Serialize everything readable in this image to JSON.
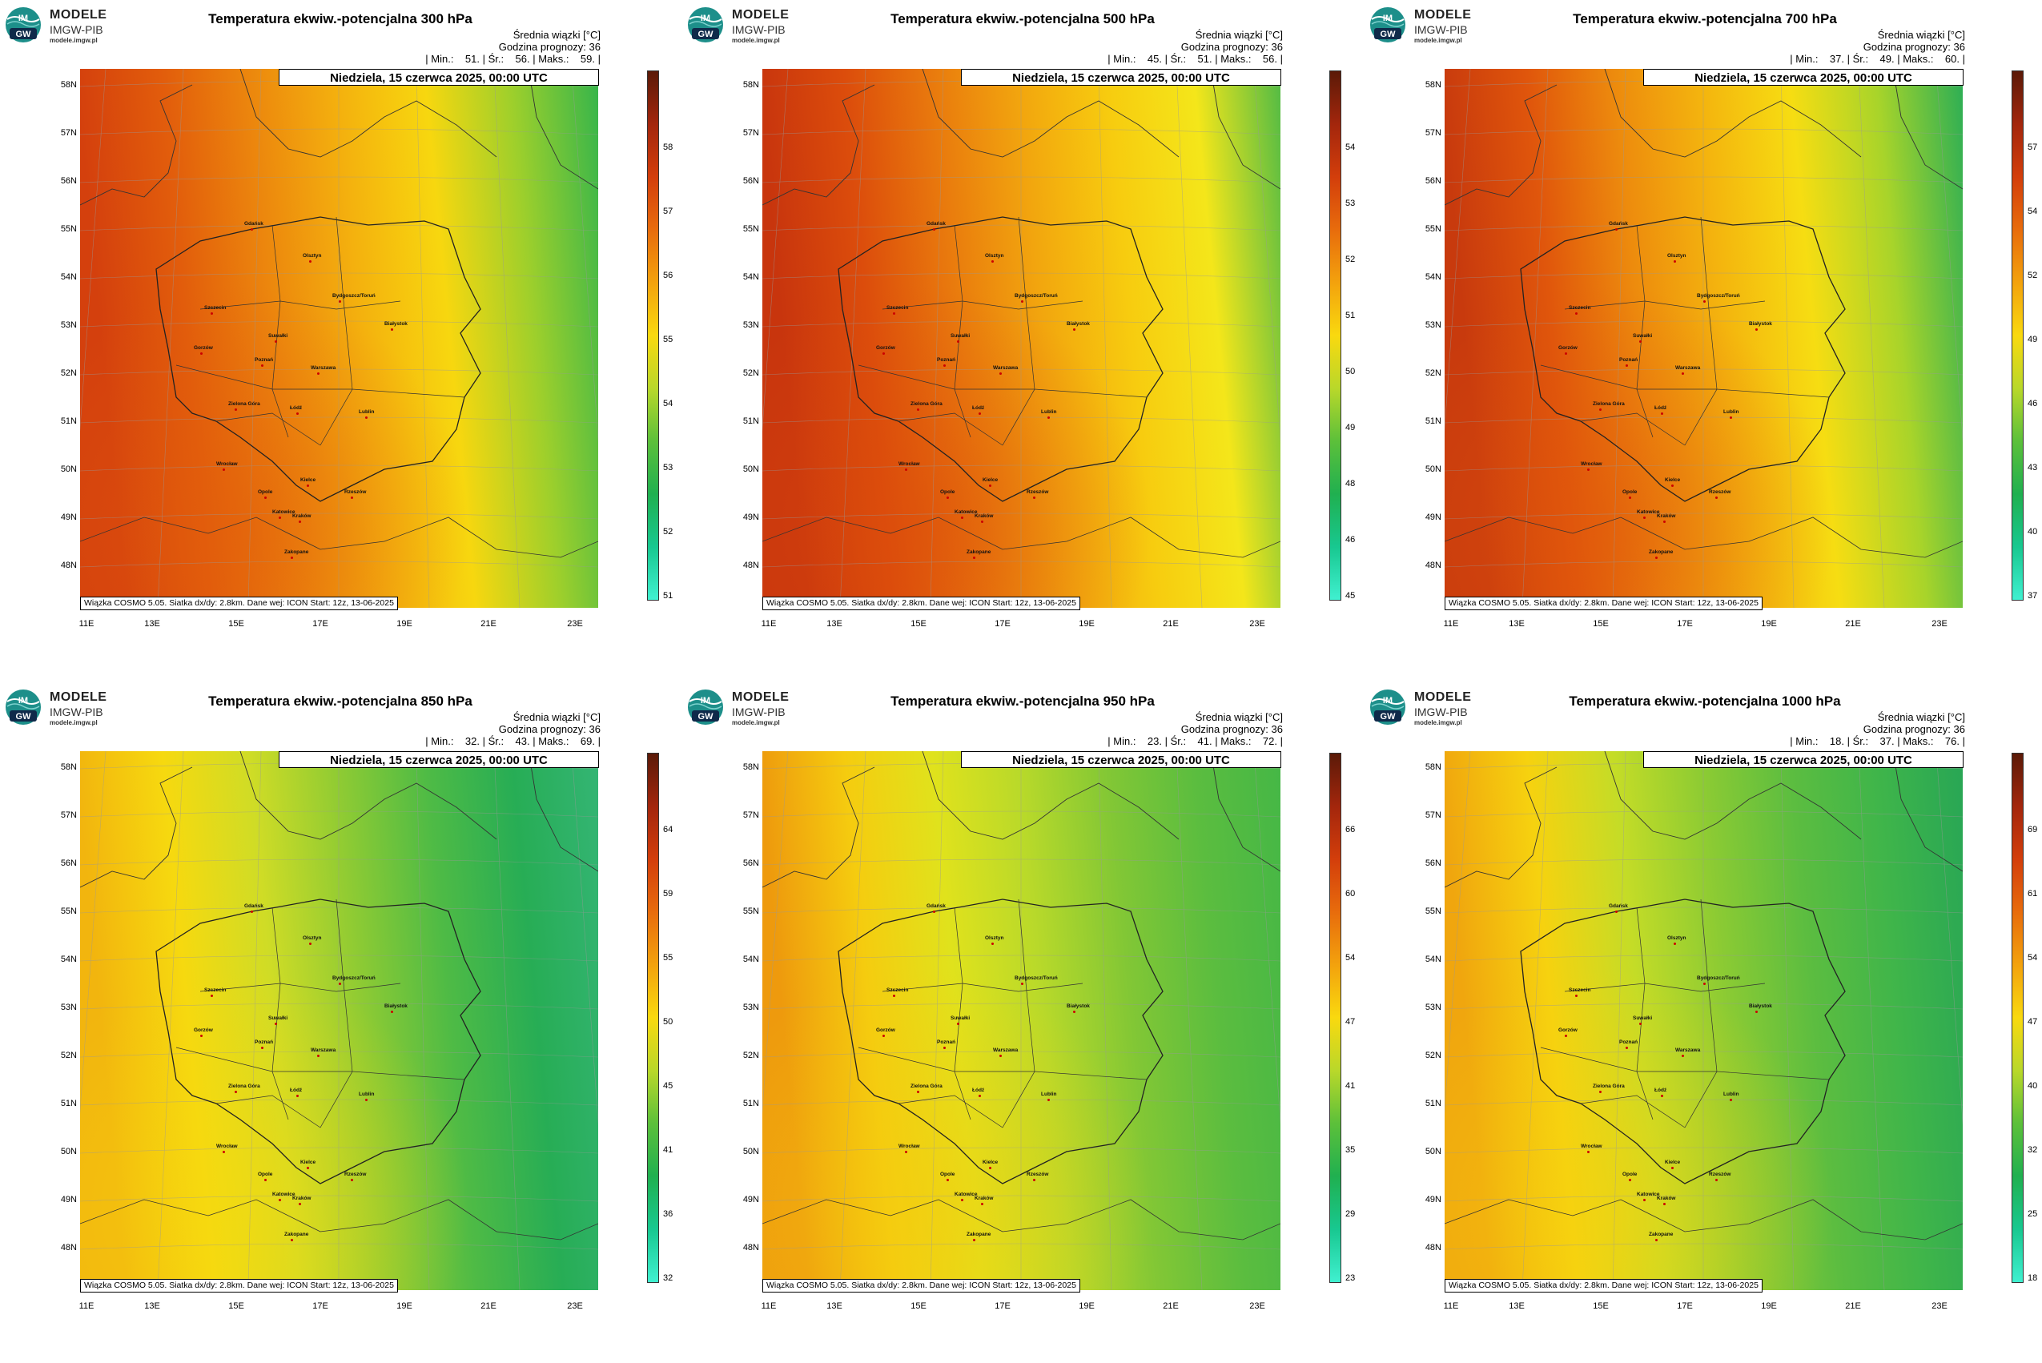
{
  "panels": [
    {
      "title": "Temperatura ekwiw.-potencjalna 300 hPa",
      "info_line1": "Średnia wiązki [°C]",
      "info_line2": "Godzina prognozy: 36",
      "info_line3": "| Min.:    51. | Śr.:    56. | Maks.:    59. |",
      "date": "Niedziela, 15 czerwca 2025, 00:00 UTC",
      "footer": "Wiązka COSMO 5.05. Siatka dx/dy: 2.8km. Dane wej: ICON Start: 12z, 13-06-2025",
      "colorbar_ticks": [
        "58",
        "57",
        "56",
        "55",
        "54",
        "53",
        "52",
        "51"
      ],
      "colorbar_stops": [
        "#5b1a08",
        "#a3260c",
        "#d33e0b",
        "#e86c0c",
        "#f3a20d",
        "#f9d90f",
        "#b9d82a",
        "#5cc03a",
        "#20b050",
        "#18c890",
        "#40f0d0"
      ],
      "field_colors": [
        "#d4400d",
        "#e25d0c",
        "#ec870d",
        "#f4b10e",
        "#f7d70f",
        "#9ccf2c",
        "#36b54b"
      ]
    },
    {
      "title": "Temperatura ekwiw.-potencjalna 500 hPa",
      "info_line1": "Średnia wiązki [°C]",
      "info_line2": "Godzina prognozy: 36",
      "info_line3": "| Min.:    45. | Śr.:    51. | Maks.:    56. |",
      "date": "Niedziela, 15 czerwca 2025, 00:00 UTC",
      "footer": "Wiązka COSMO 5.05. Siatka dx/dy: 2.8km. Dane wej: ICON Start: 12z, 13-06-2025",
      "colorbar_ticks": [
        "54",
        "53",
        "52",
        "51",
        "50",
        "49",
        "48",
        "46",
        "45"
      ],
      "colorbar_stops": [
        "#5b1a08",
        "#a3260c",
        "#d33e0b",
        "#e86c0c",
        "#f3a20d",
        "#f9d90f",
        "#b9d82a",
        "#5cc03a",
        "#20b050",
        "#18c890",
        "#40f0d0"
      ],
      "field_colors": [
        "#c8350d",
        "#dc4d0c",
        "#e97a0d",
        "#f2a60e",
        "#f7cc0f",
        "#f4e61a",
        "#52bb45"
      ]
    },
    {
      "title": "Temperatura ekwiw.-potencjalna 700 hPa",
      "info_line1": "Średnia wiązki [°C]",
      "info_line2": "Godzina prognozy: 36",
      "info_line3": "| Min.:    37. | Śr.:    49. | Maks.:    60. |",
      "date": "Niedziela, 15 czerwca 2025, 00:00 UTC",
      "footer": "Wiązka COSMO 5.05. Siatka dx/dy: 2.8km. Dane wej: ICON Start: 12z, 13-06-2025",
      "colorbar_ticks": [
        "57",
        "54",
        "52",
        "49",
        "46",
        "43",
        "40",
        "37"
      ],
      "colorbar_stops": [
        "#5b1a08",
        "#a3260c",
        "#d33e0b",
        "#e86c0c",
        "#f3a20d",
        "#f9d90f",
        "#b9d82a",
        "#5cc03a",
        "#20b050",
        "#18c890",
        "#40f0d0"
      ],
      "field_colors": [
        "#c83a0d",
        "#e0560c",
        "#ed8b0d",
        "#f4b50e",
        "#f6dd12",
        "#a8d42a",
        "#2cae55"
      ]
    },
    {
      "title": "Temperatura ekwiw.-potencjalna 850 hPa",
      "info_line1": "Średnia wiązki [°C]",
      "info_line2": "Godzina prognozy: 36",
      "info_line3": "| Min.:    32. | Śr.:    43. | Maks.:    69. |",
      "date": "Niedziela, 15 czerwca 2025, 00:00 UTC",
      "footer": "Wiązka COSMO 5.05. Siatka dx/dy: 2.8km. Dane wej: ICON Start: 12z, 13-06-2025",
      "colorbar_ticks": [
        "64",
        "59",
        "55",
        "50",
        "45",
        "41",
        "36",
        "32"
      ],
      "colorbar_stops": [
        "#5b1a08",
        "#a3260c",
        "#d33e0b",
        "#e86c0c",
        "#f3a20d",
        "#f9d90f",
        "#b9d82a",
        "#5cc03a",
        "#20b050",
        "#18c890",
        "#40f0d0"
      ],
      "field_colors": [
        "#f2b50e",
        "#f6d90f",
        "#cfdc26",
        "#8fcb33",
        "#4fbb45",
        "#27ad55",
        "#34b574"
      ]
    },
    {
      "title": "Temperatura ekwiw.-potencjalna 950 hPa",
      "info_line1": "Średnia wiązki [°C]",
      "info_line2": "Godzina prognozy: 36",
      "info_line3": "| Min.:    23. | Śr.:    41. | Maks.:    72. |",
      "date": "Niedziela, 15 czerwca 2025, 00:00 UTC",
      "footer": "Wiązka COSMO 5.05. Siatka dx/dy: 2.8km. Dane wej: ICON Start: 12z, 13-06-2025",
      "colorbar_ticks": [
        "66",
        "60",
        "54",
        "47",
        "41",
        "35",
        "29",
        "23"
      ],
      "colorbar_stops": [
        "#5b1a08",
        "#a3260c",
        "#d33e0b",
        "#e86c0c",
        "#f3a20d",
        "#f9d90f",
        "#b9d82a",
        "#5cc03a",
        "#20b050",
        "#18c890",
        "#40f0d0"
      ],
      "field_colors": [
        "#ee9a0d",
        "#f5cc0f",
        "#e0e21c",
        "#b8d92a",
        "#82c735",
        "#5bbd3f",
        "#45b746"
      ]
    },
    {
      "title": "Temperatura ekwiw.-potencjalna 1000 hPa",
      "info_line1": "Średnia wiązki [°C]",
      "info_line2": "Godzina prognozy: 36",
      "info_line3": "| Min.:    18. | Śr.:    37. | Maks.:    76. |",
      "date": "Niedziela, 15 czerwca 2025, 00:00 UTC",
      "footer": "Wiązka COSMO 5.05. Siatka dx/dy: 2.8km. Dane wej: ICON Start: 12z, 13-06-2025",
      "colorbar_ticks": [
        "69",
        "61",
        "54",
        "47",
        "40",
        "32",
        "25",
        "18"
      ],
      "colorbar_stops": [
        "#5b1a08",
        "#a3260c",
        "#d33e0b",
        "#e86c0c",
        "#f3a20d",
        "#f9d90f",
        "#b9d82a",
        "#5cc03a",
        "#20b050",
        "#18c890",
        "#40f0d0"
      ],
      "field_colors": [
        "#f0a60e",
        "#f6d20f",
        "#c4dc27",
        "#8ccb33",
        "#5cbd40",
        "#3fb54a",
        "#28a655"
      ]
    }
  ],
  "logo": {
    "title": "MODELE",
    "subtitle": "IMGW-PIB",
    "url": "modele.imgw.pl",
    "badge": "IM GW"
  },
  "lat_labels": [
    "58N",
    "57N",
    "56N",
    "55N",
    "54N",
    "53N",
    "52N",
    "51N",
    "50N",
    "49N",
    "48N"
  ],
  "lon_labels": [
    "11E",
    "13E",
    "15E",
    "17E",
    "19E",
    "21E",
    "23E"
  ],
  "cities": [
    "Gdańsk",
    "Olsztyn",
    "Suwałki",
    "Białystok",
    "Szczecin",
    "Bydgoszcz/Toruń",
    "Gorzów",
    "Poznań",
    "Warszawa",
    "Zielona Góra",
    "Łódź",
    "Lublin",
    "Wrocław",
    "Kielce",
    "Opole",
    "Rzeszów",
    "Katowice",
    "Kraków",
    "Zakopane"
  ]
}
